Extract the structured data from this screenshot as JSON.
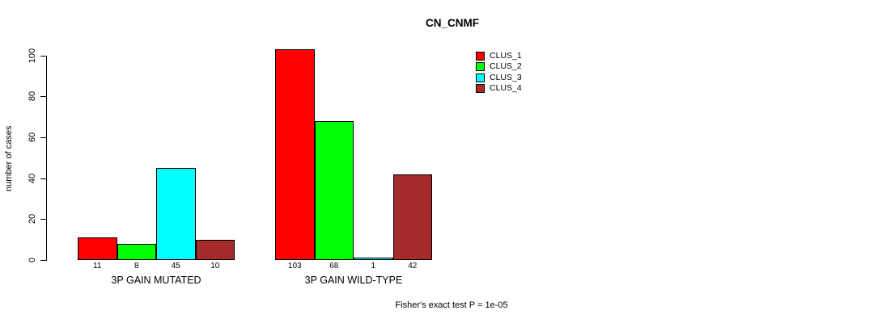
{
  "chart_data": {
    "type": "bar",
    "title": "CN_CNMF",
    "ylabel": "number of cases",
    "ylim": [
      0,
      100
    ],
    "yticks": [
      0,
      20,
      40,
      60,
      80,
      100
    ],
    "grid": false,
    "categories": [
      "3P GAIN MUTATED",
      "3P GAIN WILD-TYPE"
    ],
    "series": [
      {
        "name": "CLUS_1",
        "color": "#FF0000",
        "values": [
          11,
          103
        ]
      },
      {
        "name": "CLUS_2",
        "color": "#00FF00",
        "values": [
          8,
          68
        ]
      },
      {
        "name": "CLUS_3",
        "color": "#00FFFF",
        "values": [
          45,
          1
        ]
      },
      {
        "name": "CLUS_4",
        "color": "#A52A2A",
        "values": [
          10,
          42
        ]
      }
    ],
    "legend": {
      "position": "top-right"
    },
    "annotation": "Fisher's exact test P = 1e-05"
  }
}
